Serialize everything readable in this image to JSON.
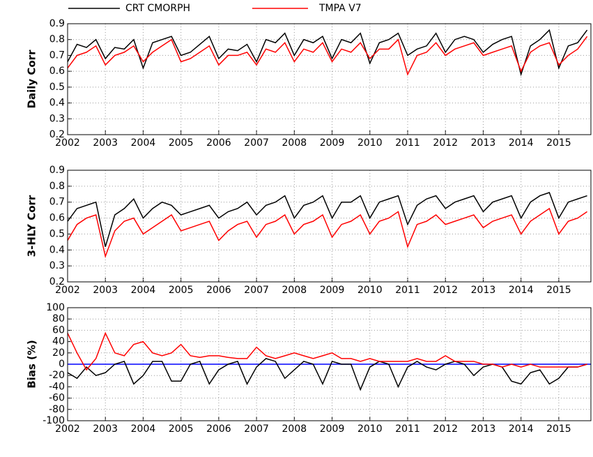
{
  "chart_data": [
    {
      "type": "line",
      "ylabel": "Daily Corr",
      "x": [
        2002,
        2002.25,
        2002.5,
        2002.75,
        2003,
        2003.25,
        2003.5,
        2003.75,
        2004,
        2004.25,
        2004.5,
        2004.75,
        2005,
        2005.25,
        2005.5,
        2005.75,
        2006,
        2006.25,
        2006.5,
        2006.75,
        2007,
        2007.25,
        2007.5,
        2007.75,
        2008,
        2008.25,
        2008.5,
        2008.75,
        2009,
        2009.25,
        2009.5,
        2009.75,
        2010,
        2010.25,
        2010.5,
        2010.75,
        2011,
        2011.25,
        2011.5,
        2011.75,
        2012,
        2012.25,
        2012.5,
        2012.75,
        2013,
        2013.25,
        2013.5,
        2013.75,
        2014,
        2014.25,
        2014.5,
        2014.75,
        2015,
        2015.25,
        2015.5,
        2015.75
      ],
      "series": [
        {
          "name": "CRT CMORPH",
          "color": "#000000",
          "values": [
            0.66,
            0.77,
            0.75,
            0.8,
            0.68,
            0.75,
            0.74,
            0.8,
            0.62,
            0.78,
            0.8,
            0.82,
            0.7,
            0.72,
            0.77,
            0.82,
            0.68,
            0.74,
            0.73,
            0.77,
            0.66,
            0.8,
            0.78,
            0.84,
            0.7,
            0.8,
            0.78,
            0.82,
            0.68,
            0.8,
            0.78,
            0.84,
            0.65,
            0.78,
            0.8,
            0.84,
            0.7,
            0.74,
            0.76,
            0.84,
            0.72,
            0.8,
            0.82,
            0.8,
            0.72,
            0.77,
            0.8,
            0.82,
            0.58,
            0.76,
            0.8,
            0.86,
            0.62,
            0.76,
            0.78,
            0.86
          ]
        },
        {
          "name": "TMPA V7",
          "color": "#ff0000",
          "values": [
            0.62,
            0.7,
            0.72,
            0.76,
            0.64,
            0.7,
            0.72,
            0.76,
            0.66,
            0.72,
            0.76,
            0.8,
            0.66,
            0.68,
            0.72,
            0.76,
            0.64,
            0.7,
            0.7,
            0.72,
            0.64,
            0.74,
            0.72,
            0.78,
            0.66,
            0.74,
            0.72,
            0.78,
            0.66,
            0.74,
            0.72,
            0.78,
            0.68,
            0.74,
            0.74,
            0.8,
            0.58,
            0.7,
            0.72,
            0.78,
            0.7,
            0.74,
            0.76,
            0.78,
            0.7,
            0.72,
            0.74,
            0.76,
            0.6,
            0.72,
            0.76,
            0.78,
            0.64,
            0.7,
            0.74,
            0.82
          ]
        }
      ],
      "xlim": [
        2002,
        2015.85
      ],
      "xticks": [
        2002,
        2003,
        2004,
        2005,
        2006,
        2007,
        2008,
        2009,
        2010,
        2011,
        2012,
        2013,
        2014,
        2015
      ],
      "ylim": [
        0.2,
        0.9
      ],
      "yticks": [
        0.2,
        0.3,
        0.4,
        0.5,
        0.6,
        0.7,
        0.8,
        0.9
      ],
      "grid": true
    },
    {
      "type": "line",
      "ylabel": "3-HLY Corr",
      "x": [
        2002,
        2002.25,
        2002.5,
        2002.75,
        2003,
        2003.25,
        2003.5,
        2003.75,
        2004,
        2004.25,
        2004.5,
        2004.75,
        2005,
        2005.25,
        2005.5,
        2005.75,
        2006,
        2006.25,
        2006.5,
        2006.75,
        2007,
        2007.25,
        2007.5,
        2007.75,
        2008,
        2008.25,
        2008.5,
        2008.75,
        2009,
        2009.25,
        2009.5,
        2009.75,
        2010,
        2010.25,
        2010.5,
        2010.75,
        2011,
        2011.25,
        2011.5,
        2011.75,
        2012,
        2012.25,
        2012.5,
        2012.75,
        2013,
        2013.25,
        2013.5,
        2013.75,
        2014,
        2014.25,
        2014.5,
        2014.75,
        2015,
        2015.25,
        2015.5,
        2015.75
      ],
      "series": [
        {
          "color": "#000000",
          "values": [
            0.58,
            0.66,
            0.68,
            0.7,
            0.42,
            0.62,
            0.66,
            0.72,
            0.6,
            0.66,
            0.7,
            0.68,
            0.62,
            0.64,
            0.66,
            0.68,
            0.6,
            0.64,
            0.66,
            0.7,
            0.62,
            0.68,
            0.7,
            0.74,
            0.6,
            0.68,
            0.7,
            0.74,
            0.6,
            0.7,
            0.7,
            0.74,
            0.6,
            0.7,
            0.72,
            0.74,
            0.56,
            0.68,
            0.72,
            0.74,
            0.66,
            0.7,
            0.72,
            0.74,
            0.64,
            0.7,
            0.72,
            0.74,
            0.6,
            0.7,
            0.74,
            0.76,
            0.6,
            0.7,
            0.72,
            0.74
          ]
        },
        {
          "color": "#ff0000",
          "values": [
            0.46,
            0.56,
            0.6,
            0.62,
            0.36,
            0.52,
            0.58,
            0.6,
            0.5,
            0.54,
            0.58,
            0.62,
            0.52,
            0.54,
            0.56,
            0.58,
            0.46,
            0.52,
            0.56,
            0.58,
            0.48,
            0.56,
            0.58,
            0.62,
            0.5,
            0.56,
            0.58,
            0.62,
            0.48,
            0.56,
            0.58,
            0.62,
            0.5,
            0.58,
            0.6,
            0.64,
            0.42,
            0.56,
            0.58,
            0.62,
            0.56,
            0.58,
            0.6,
            0.62,
            0.54,
            0.58,
            0.6,
            0.62,
            0.5,
            0.58,
            0.62,
            0.66,
            0.5,
            0.58,
            0.6,
            0.64
          ]
        }
      ],
      "xlim": [
        2002,
        2015.85
      ],
      "xticks": [
        2002,
        2003,
        2004,
        2005,
        2006,
        2007,
        2008,
        2009,
        2010,
        2011,
        2012,
        2013,
        2014,
        2015
      ],
      "ylim": [
        0.2,
        0.9
      ],
      "yticks": [
        0.2,
        0.3,
        0.4,
        0.5,
        0.6,
        0.7,
        0.8,
        0.9
      ],
      "grid": true
    },
    {
      "type": "line",
      "ylabel": "Bias (%)",
      "x": [
        2002,
        2002.25,
        2002.5,
        2002.75,
        2003,
        2003.25,
        2003.5,
        2003.75,
        2004,
        2004.25,
        2004.5,
        2004.75,
        2005,
        2005.25,
        2005.5,
        2005.75,
        2006,
        2006.25,
        2006.5,
        2006.75,
        2007,
        2007.25,
        2007.5,
        2007.75,
        2008,
        2008.25,
        2008.5,
        2008.75,
        2009,
        2009.25,
        2009.5,
        2009.75,
        2010,
        2010.25,
        2010.5,
        2010.75,
        2011,
        2011.25,
        2011.5,
        2011.75,
        2012,
        2012.25,
        2012.5,
        2012.75,
        2013,
        2013.25,
        2013.5,
        2013.75,
        2014,
        2014.25,
        2014.5,
        2014.75,
        2015,
        2015.25,
        2015.5,
        2015.75
      ],
      "series": [
        {
          "color": "#000000",
          "values": [
            -15,
            -25,
            -5,
            -20,
            -15,
            0,
            5,
            -35,
            -20,
            5,
            5,
            -30,
            -30,
            0,
            5,
            -35,
            -10,
            0,
            5,
            -35,
            -5,
            10,
            5,
            -25,
            -10,
            5,
            0,
            -35,
            5,
            0,
            0,
            -45,
            -5,
            5,
            0,
            -40,
            -5,
            5,
            -5,
            -10,
            0,
            5,
            0,
            -20,
            -5,
            0,
            -5,
            -30,
            -35,
            -15,
            -10,
            -35,
            -25,
            -5,
            -5,
            0
          ]
        },
        {
          "color": "#ff0000",
          "values": [
            55,
            20,
            -10,
            10,
            55,
            20,
            15,
            35,
            40,
            20,
            15,
            20,
            35,
            15,
            12,
            15,
            15,
            12,
            10,
            10,
            30,
            15,
            10,
            15,
            20,
            15,
            10,
            15,
            20,
            10,
            10,
            5,
            10,
            5,
            5,
            5,
            5,
            10,
            5,
            5,
            15,
            5,
            5,
            5,
            0,
            0,
            -5,
            0,
            -5,
            0,
            -5,
            -5,
            -5,
            -5,
            -5,
            0
          ]
        }
      ],
      "xlim": [
        2002,
        2015.85
      ],
      "xticks": [
        2002,
        2003,
        2004,
        2005,
        2006,
        2007,
        2008,
        2009,
        2010,
        2011,
        2012,
        2013,
        2014,
        2015
      ],
      "ylim": [
        -100,
        100
      ],
      "yticks": [
        -100,
        -80,
        -60,
        -40,
        -20,
        0,
        20,
        40,
        60,
        80,
        100
      ],
      "grid": true,
      "hline": 0,
      "hline_color": "#0000ff"
    }
  ]
}
